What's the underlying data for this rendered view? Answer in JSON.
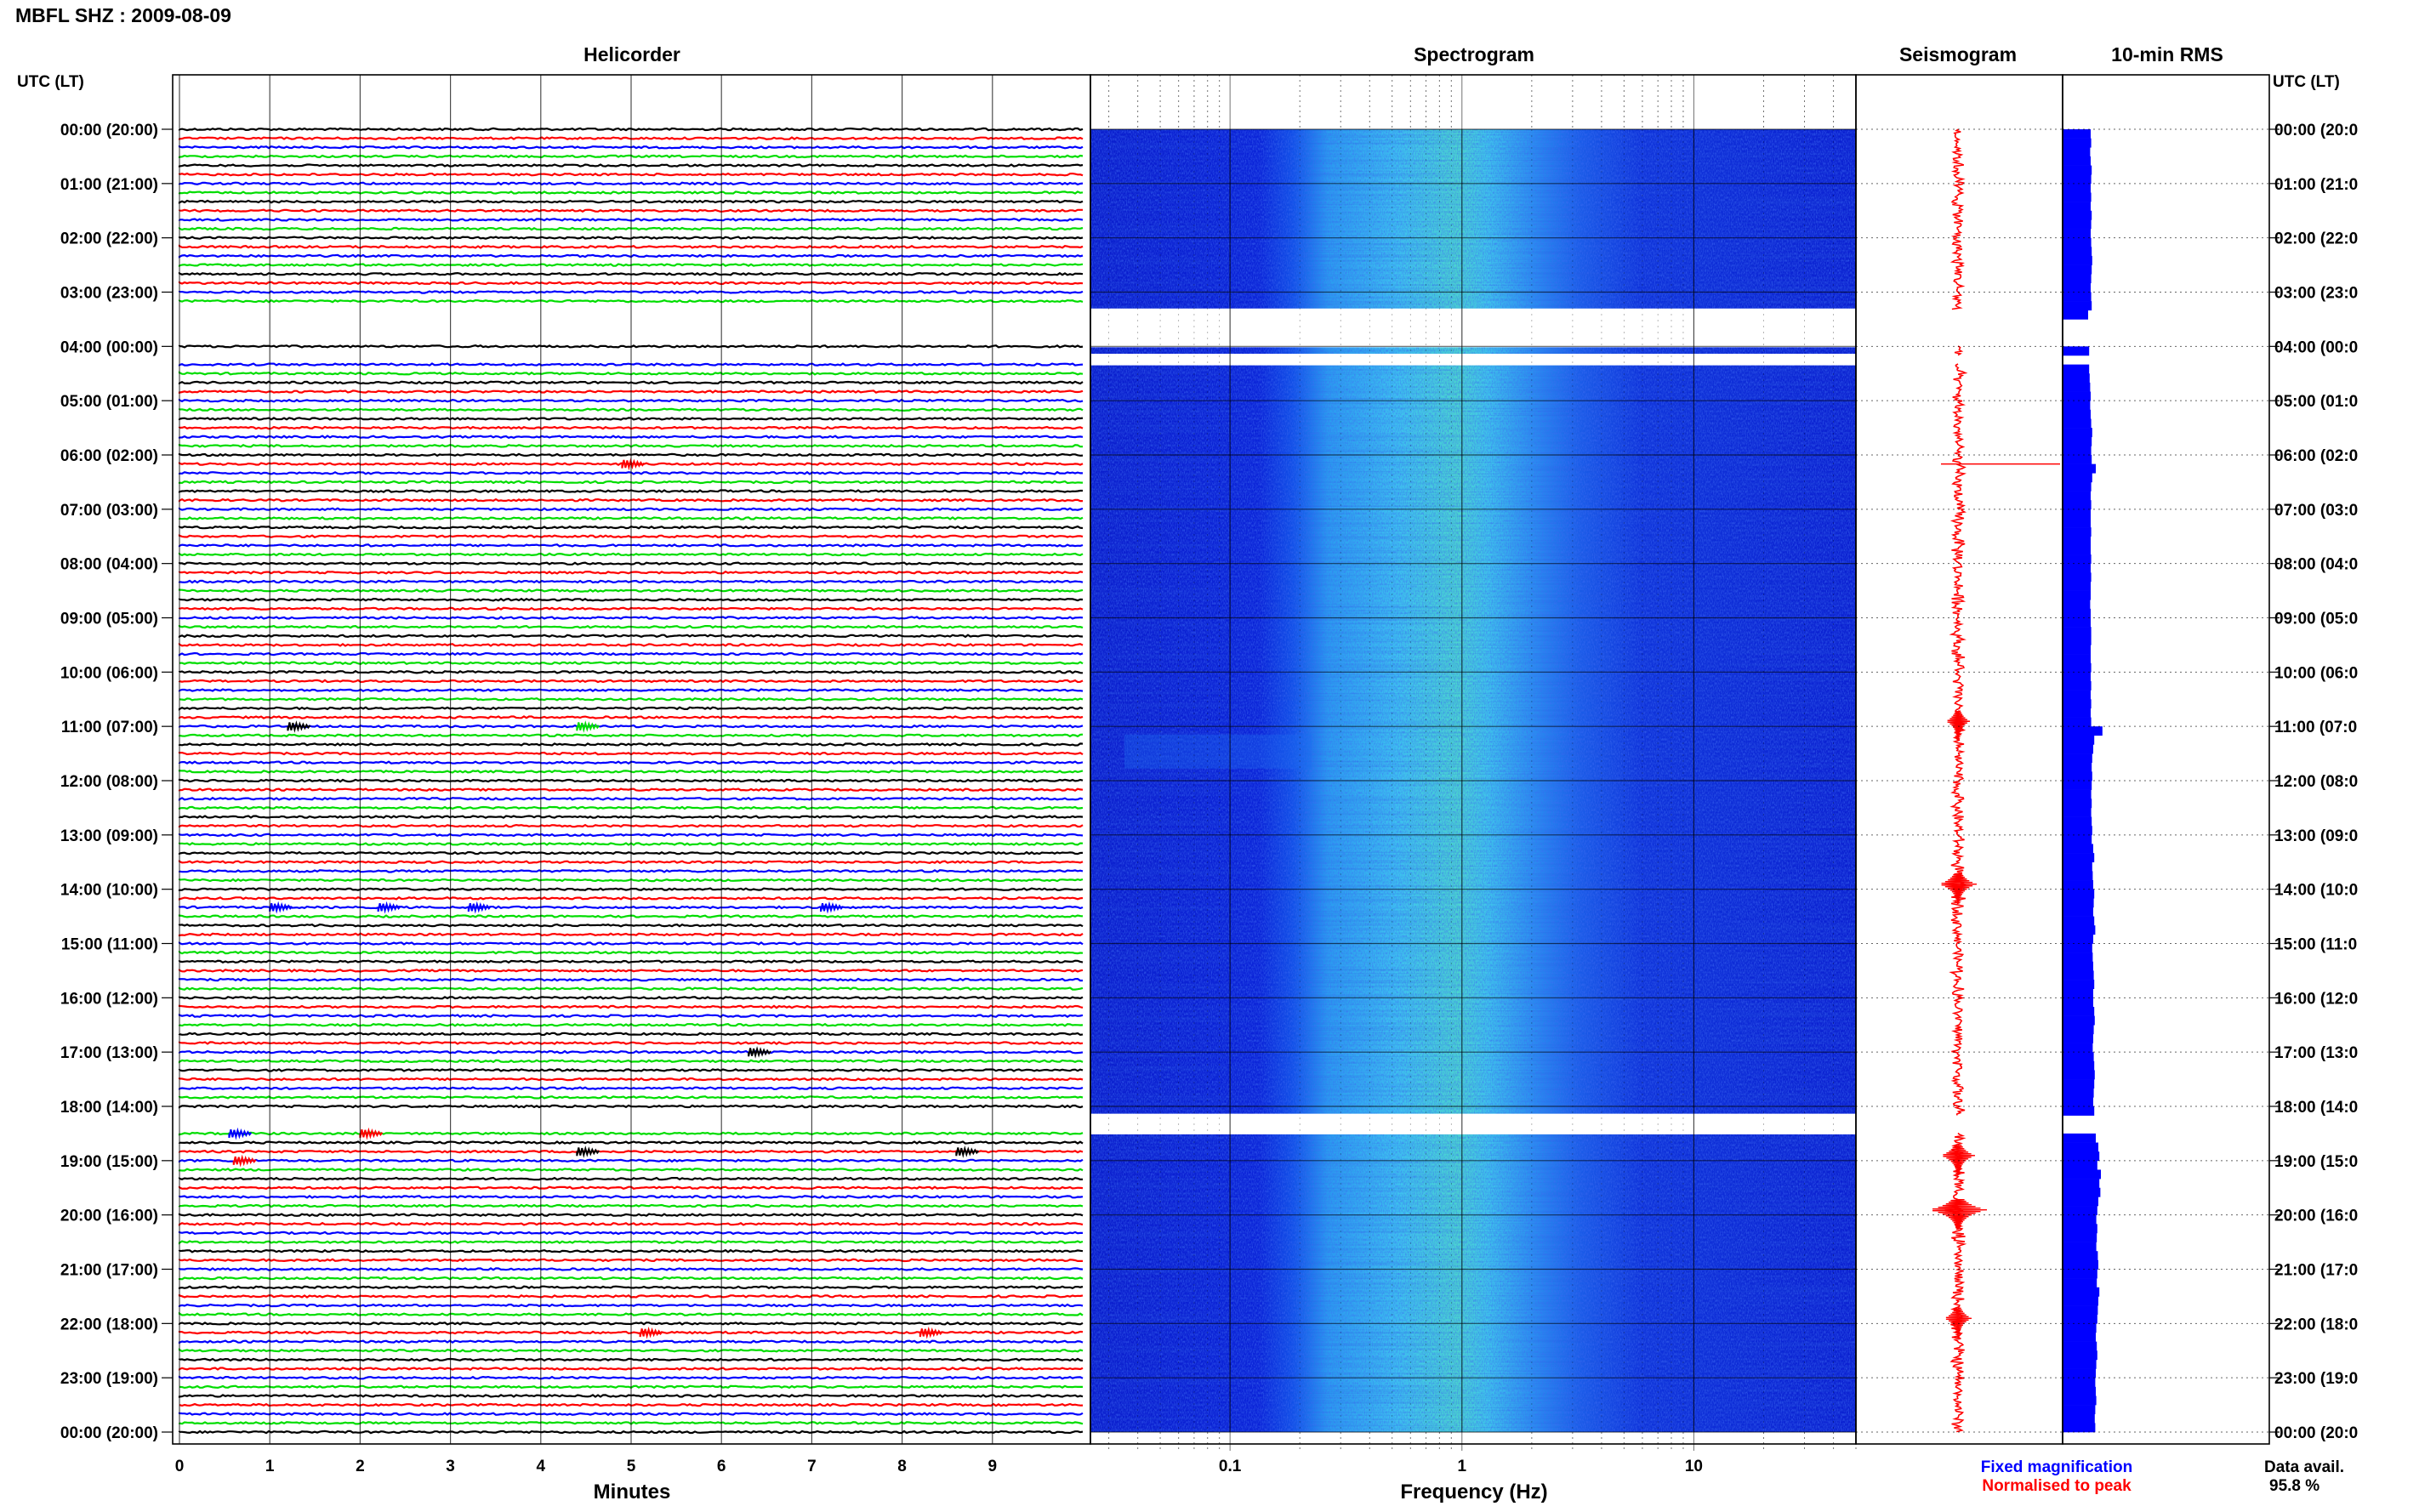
{
  "title": "MBFL SHZ : 2009-08-09",
  "panels": {
    "helicorder": "Helicorder",
    "spectrogram": "Spectrogram",
    "seismogram": "Seismogram",
    "rms": "10-min RMS"
  },
  "axis_labels": {
    "utc_left": "UTC (LT)",
    "utc_right": "UTC (LT)",
    "minutes": "Minutes",
    "frequency": "Frequency (Hz)"
  },
  "legend": {
    "fixed": "Fixed magnification",
    "normalised": "Normalised to peak",
    "fixed_color": "#0000ff",
    "normalised_color": "#ff0000"
  },
  "data_availability": {
    "label": "Data avail.",
    "value": "95.8 %"
  },
  "colors": {
    "trace_cycle": [
      "#000000",
      "#ff0000",
      "#0000ff",
      "#00dd00"
    ],
    "spectrogram_background": "#0a1fd6",
    "spectrogram_peak": "#4fe3b0",
    "seismogram": "#ff0000",
    "rms_bars": "#0000ff"
  },
  "chart_data": [
    {
      "type": "line",
      "panel": "helicorder",
      "title": "Helicorder",
      "xlabel": "Minutes",
      "x_ticks": [
        "0",
        "1",
        "2",
        "3",
        "4",
        "5",
        "6",
        "7",
        "8",
        "9"
      ],
      "xlim": [
        0,
        10
      ],
      "row_interval_minutes": 10,
      "trace_color_cycle": [
        "black",
        "red",
        "blue",
        "green"
      ],
      "data_gaps_utc": [
        [
          "03:20",
          "04:00"
        ],
        [
          "04:10",
          "04:20"
        ],
        [
          "18:10",
          "18:30"
        ]
      ]
    },
    {
      "type": "heatmap",
      "panel": "spectrogram",
      "title": "Spectrogram",
      "xlabel": "Frequency (Hz)",
      "x_scale": "log",
      "x_ticks": [
        "0.1",
        "1",
        "10"
      ],
      "xlim": [
        0.025,
        50
      ],
      "dominant_band_hz": [
        0.2,
        1.5
      ],
      "data_gaps_utc": [
        [
          "03:20",
          "04:00"
        ],
        [
          "04:10",
          "04:20"
        ],
        [
          "18:10",
          "18:30"
        ]
      ]
    },
    {
      "type": "line",
      "panel": "seismogram",
      "title": "Seismogram",
      "events_utc": [
        "06:10",
        "11:00",
        "14:00",
        "19:00",
        "20:00",
        "22:00"
      ]
    },
    {
      "type": "bar",
      "panel": "rms",
      "title": "10-min RMS",
      "interval": "10-min",
      "values": [
        0.55,
        0.56,
        0.54,
        0.55,
        0.57,
        0.56,
        0.55,
        0.56,
        0.55,
        0.57,
        0.56,
        0.55,
        0.56,
        0.57,
        0.58,
        0.57,
        0.56,
        0.55,
        0.56,
        0.57,
        0.5,
        null,
        null,
        null,
        0.52,
        null,
        0.52,
        0.53,
        0.54,
        0.55,
        0.54,
        0.55,
        0.56,
        0.58,
        0.57,
        0.56,
        0.57,
        0.65,
        0.58,
        0.56,
        0.55,
        0.56,
        0.55,
        0.55,
        0.56,
        0.55,
        0.55,
        0.56,
        0.55,
        0.56,
        0.55,
        0.55,
        0.54,
        0.55,
        0.55,
        0.56,
        0.56,
        0.55,
        0.55,
        0.56,
        0.55,
        0.56,
        0.55,
        0.56,
        0.55,
        0.56,
        0.78,
        0.62,
        0.6,
        0.58,
        0.57,
        0.58,
        0.57,
        0.56,
        0.57,
        0.56,
        0.57,
        0.58,
        0.57,
        0.6,
        0.62,
        0.58,
        0.59,
        0.6,
        0.62,
        0.61,
        0.6,
        0.62,
        0.64,
        0.6,
        0.58,
        0.59,
        0.6,
        0.61,
        0.62,
        0.6,
        0.6,
        0.62,
        0.63,
        0.61,
        0.6,
        0.59,
        0.61,
        0.62,
        0.63,
        0.62,
        0.61,
        0.6,
        0.62,
        null,
        null,
        0.65,
        0.7,
        0.72,
        0.68,
        0.75,
        0.72,
        0.74,
        0.7,
        0.68,
        0.66,
        0.68,
        0.67,
        0.66,
        0.69,
        0.7,
        0.68,
        0.67,
        0.72,
        0.7,
        0.69,
        0.68,
        0.66,
        0.65,
        0.67,
        0.68,
        0.66,
        0.65,
        0.64,
        0.65,
        0.66,
        0.64,
        0.63,
        0.64
      ]
    }
  ],
  "time_labels": [
    "00:00 (20:00)",
    "01:00 (21:00)",
    "02:00 (22:00)",
    "03:00 (23:00)",
    "04:00 (00:00)",
    "05:00 (01:00)",
    "06:00 (02:00)",
    "07:00 (03:00)",
    "08:00 (04:00)",
    "09:00 (05:00)",
    "10:00 (06:00)",
    "11:00 (07:00)",
    "12:00 (08:00)",
    "13:00 (09:00)",
    "14:00 (10:00)",
    "15:00 (11:00)",
    "16:00 (12:00)",
    "17:00 (13:00)",
    "18:00 (14:00)",
    "19:00 (15:00)",
    "20:00 (16:00)",
    "21:00 (17:00)",
    "22:00 (18:00)",
    "23:00 (19:00)",
    "00:00 (20:00)"
  ],
  "time_labels_right": [
    "00:00 (20:0",
    "01:00 (21:0",
    "02:00 (22:0",
    "03:00 (23:0",
    "04:00 (00:0",
    "05:00 (01:0",
    "06:00 (02:0",
    "07:00 (03:0",
    "08:00 (04:0",
    "09:00 (05:0",
    "10:00 (06:0",
    "11:00 (07:0",
    "12:00 (08:0",
    "13:00 (09:0",
    "14:00 (10:0",
    "15:00 (11:0",
    "16:00 (12:0",
    "17:00 (13:0",
    "18:00 (14:0",
    "19:00 (15:0",
    "20:00 (16:0",
    "21:00 (17:0",
    "22:00 (18:0",
    "23:00 (19:0",
    "00:00 (20:0"
  ]
}
